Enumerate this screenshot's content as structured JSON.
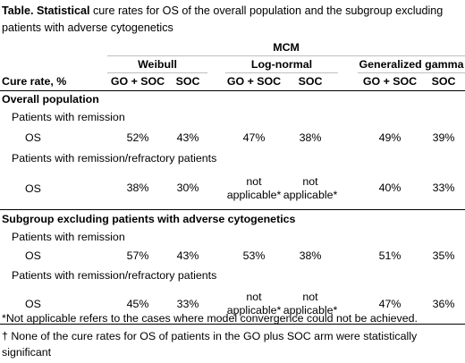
{
  "title": {
    "bold": "Table. Statistical",
    "rest": " cure rates for OS of the overall population and the subgroup excluding patients with adverse cytogenetics"
  },
  "header": {
    "group": "MCM",
    "models": [
      "Weibull",
      "Log-normal",
      "Generalized gamma"
    ],
    "row_label": "Cure rate, %",
    "arms": [
      "GO + SOC",
      "SOC",
      "GO + SOC",
      "SOC",
      "GO + SOC",
      "SOC"
    ]
  },
  "sections": [
    {
      "label": "Overall population",
      "groups": [
        {
          "label": "Patients with remission",
          "row": {
            "label": "OS",
            "values": [
              "52%",
              "43%",
              "47%",
              "38%",
              "49%",
              "39%"
            ]
          }
        },
        {
          "label": "Patients with remission/refractory patients",
          "row": {
            "label": "OS",
            "values": [
              "38%",
              "30%",
              "not applicable*",
              "not applicable*",
              "40%",
              "33%"
            ]
          }
        }
      ]
    },
    {
      "label": "Subgroup excluding patients with adverse cytogenetics",
      "groups": [
        {
          "label": "Patients with remission",
          "row": {
            "label": "OS",
            "values": [
              "57%",
              "43%",
              "53%",
              "38%",
              "51%",
              "35%"
            ]
          }
        },
        {
          "label": "Patients with remission/refractory patients",
          "row": {
            "label": "OS",
            "values": [
              "45%",
              "33%",
              "not applicable*",
              "not applicable*",
              "47%",
              "36%"
            ]
          }
        }
      ]
    }
  ],
  "footnotes": [
    "*Not applicable refers to the cases where model convergence could not be achieved.",
    "† None of the cure rates for OS of patients in the GO plus SOC arm were statistically significant"
  ]
}
